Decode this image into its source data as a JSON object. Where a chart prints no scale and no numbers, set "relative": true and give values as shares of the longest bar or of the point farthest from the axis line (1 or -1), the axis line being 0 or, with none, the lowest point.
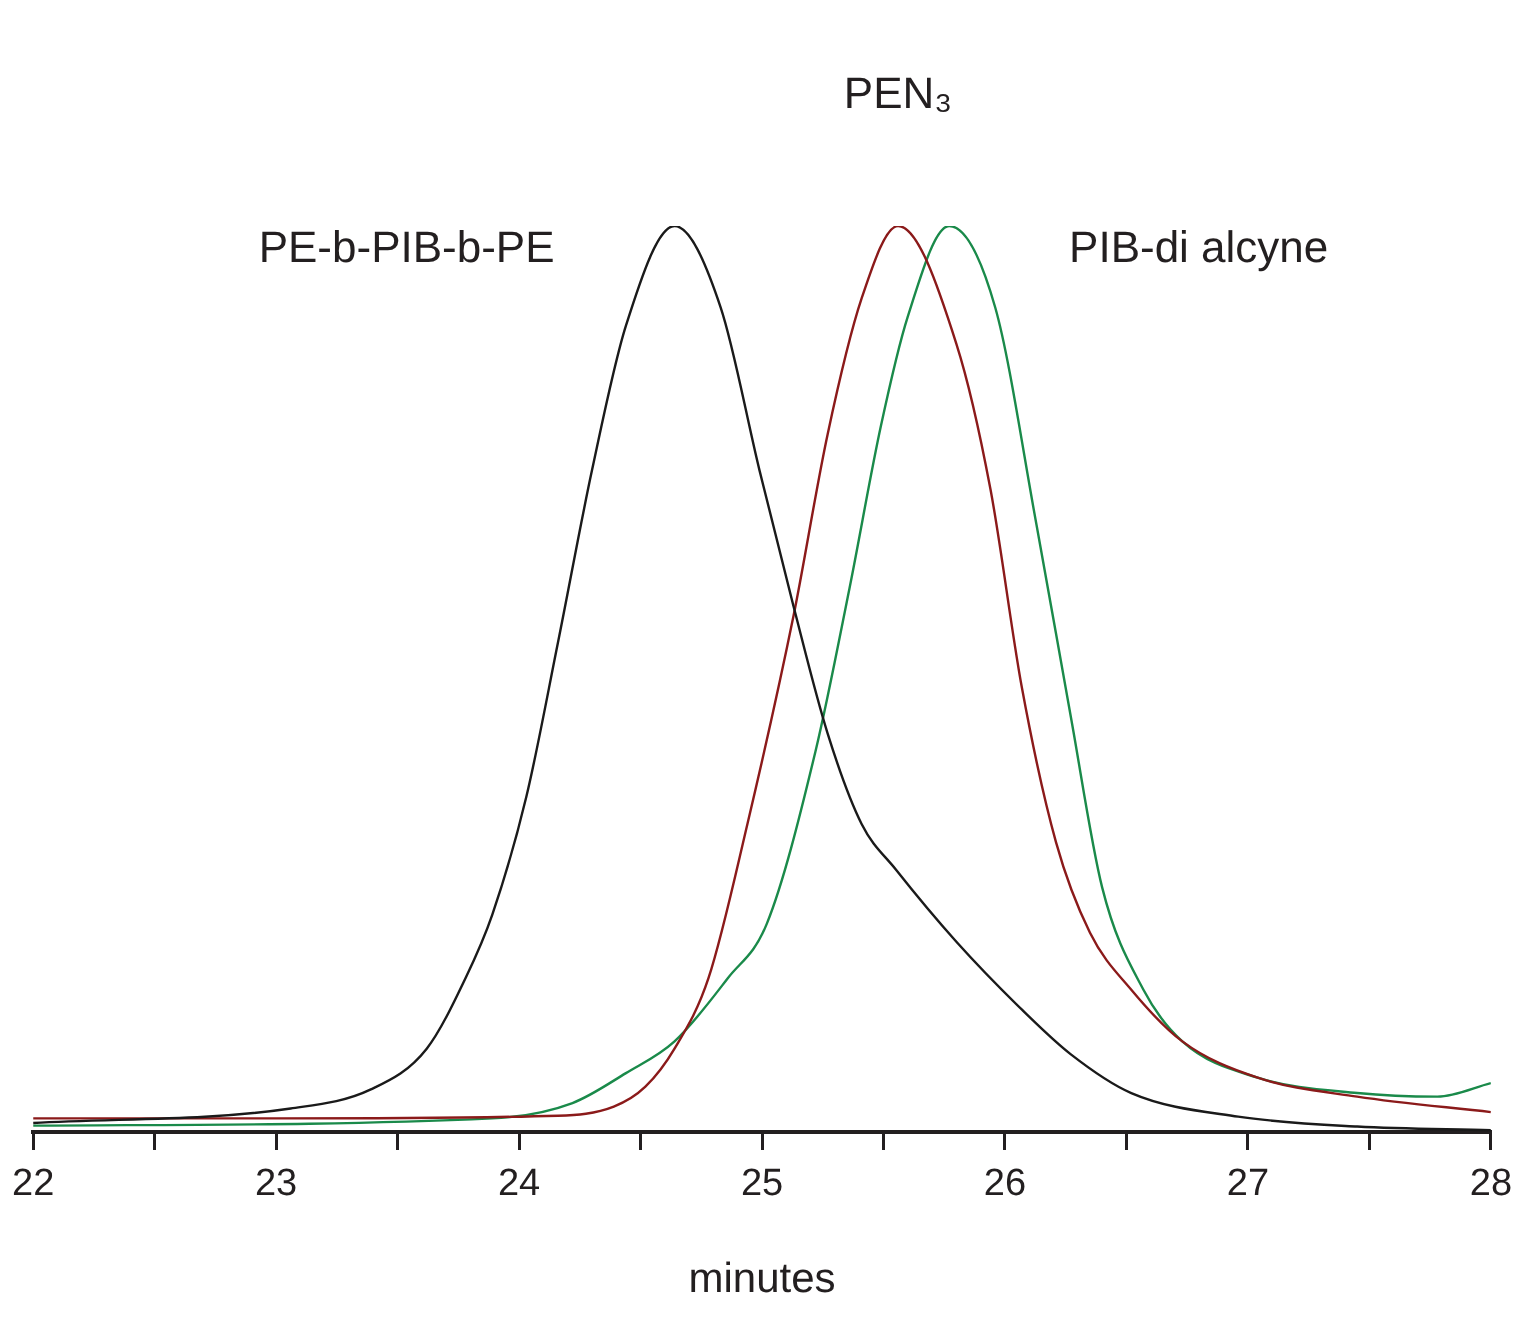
{
  "chart_data": {
    "type": "line",
    "relative": true,
    "xlabel": "minutes",
    "xlim": [
      22,
      28
    ],
    "xticks": [
      22,
      {
        "value": 22.5,
        "label": null
      },
      23,
      {
        "value": 23.5,
        "label": null
      },
      24,
      {
        "value": 24.5,
        "label": null
      },
      25,
      {
        "value": 25.5,
        "label": null
      },
      26,
      {
        "value": 26.5,
        "label": null
      },
      27,
      {
        "value": 27.5,
        "label": null
      },
      28
    ],
    "grid": false,
    "legend": false,
    "marker": "none",
    "line_style": "solid",
    "series": [
      {
        "name": "PE-b-PIB-b-PE",
        "color": "#1a1a1a",
        "x": [
          22,
          23.06,
          23.39,
          23.62,
          23.78,
          23.89,
          24.03,
          24.16,
          24.3,
          24.44,
          24.64,
          24.83,
          24.99,
          25.13,
          25.27,
          25.41,
          25.55,
          25.8,
          26.07,
          26.27,
          26.52,
          26.96,
          27.45,
          28
        ],
        "values": [
          0.01,
          0.026,
          0.047,
          0.092,
          0.17,
          0.24,
          0.37,
          0.54,
          0.73,
          0.89,
          1,
          0.91,
          0.73,
          0.58,
          0.44,
          0.34,
          0.29,
          0.21,
          0.135,
          0.086,
          0.043,
          0.017,
          0.006,
          0.002
        ]
      },
      {
        "name": "PEN₃",
        "color": "#8b1a1a",
        "x": [
          22,
          23,
          24.16,
          24.39,
          24.52,
          24.64,
          24.78,
          24.94,
          25.13,
          25.27,
          25.41,
          25.56,
          25.8,
          25.94,
          26.07,
          26.21,
          26.35,
          26.52,
          26.73,
          27.04,
          27.45,
          28
        ],
        "values": [
          0.015,
          0.015,
          0.018,
          0.028,
          0.05,
          0.092,
          0.17,
          0.34,
          0.57,
          0.77,
          0.92,
          1,
          0.87,
          0.71,
          0.49,
          0.32,
          0.22,
          0.157,
          0.1,
          0.06,
          0.039,
          0.022
        ]
      },
      {
        "name": "PIB-di alcyne",
        "color": "#1a8a4a",
        "x": [
          22,
          23.89,
          24.22,
          24.44,
          24.64,
          24.86,
          25.02,
          25.22,
          25.36,
          25.49,
          25.6,
          25.77,
          25.96,
          26.13,
          26.27,
          26.4,
          26.57,
          26.73,
          27.04,
          27.45,
          27.78,
          28
        ],
        "values": [
          0.007,
          0.015,
          0.032,
          0.065,
          0.1,
          0.17,
          0.23,
          0.42,
          0.6,
          0.78,
          0.9,
          1,
          0.91,
          0.67,
          0.46,
          0.27,
          0.157,
          0.1,
          0.06,
          0.043,
          0.039,
          0.054
        ]
      }
    ]
  }
}
